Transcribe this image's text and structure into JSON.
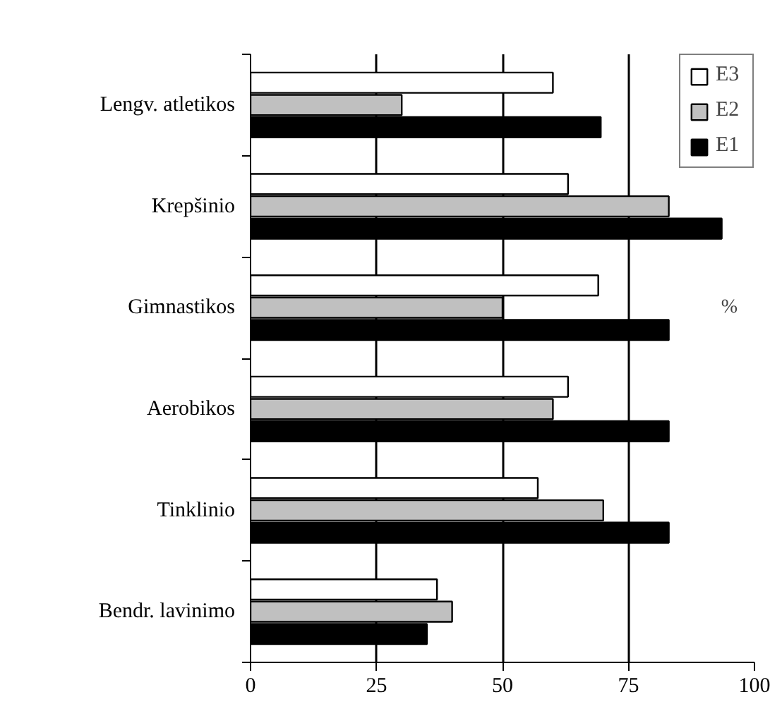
{
  "chart_data": {
    "type": "bar",
    "orientation": "horizontal",
    "categories": [
      "Lengv. atletikos",
      "Krepšinio",
      "Gimnastikos",
      "Aerobikos",
      "Tinklinio",
      "Bendr. lavinimo"
    ],
    "series": [
      {
        "name": "E3",
        "color": "#ffffff",
        "values": [
          60,
          63,
          69,
          63,
          57,
          37
        ]
      },
      {
        "name": "E2",
        "color": "#c0c0c0",
        "values": [
          30,
          83,
          50,
          60,
          70,
          40
        ]
      },
      {
        "name": "E1",
        "color": "#000000",
        "values": [
          69.5,
          93.5,
          83,
          83,
          83,
          35
        ]
      }
    ],
    "xlim": [
      0,
      100
    ],
    "xticks": [
      0,
      25,
      50,
      75,
      100
    ],
    "grid": "x",
    "legend": "top right",
    "annotations": [
      "%"
    ]
  }
}
